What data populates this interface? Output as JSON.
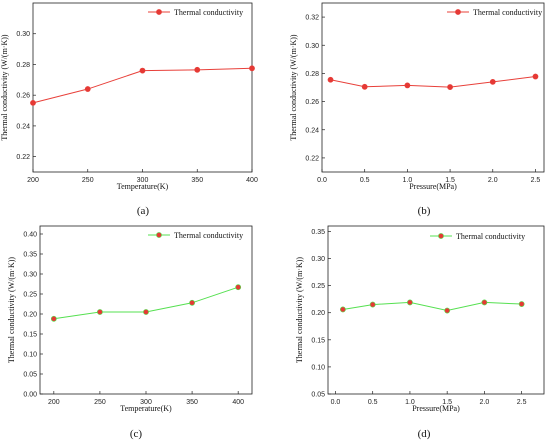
{
  "chart_data": [
    {
      "type": "line",
      "panel": "(a)",
      "xlabel": "Temperature(K)",
      "ylabel": "Thermal conductivity (W/(m·K))",
      "xlim": [
        200,
        400
      ],
      "ylim": [
        0.21,
        0.32
      ],
      "x_ticks": [
        "200",
        "250",
        "300",
        "350",
        "400"
      ],
      "y_ticks": [
        "0.22",
        "0.24",
        "0.26",
        "0.28",
        "0.30"
      ],
      "legend_position": "top-right",
      "line_color": "#e8403a",
      "series": [
        {
          "name": "Thermal conductivity",
          "x": [
            200,
            250,
            300,
            350,
            400
          ],
          "values": [
            0.255,
            0.264,
            0.276,
            0.2765,
            0.2775
          ]
        }
      ]
    },
    {
      "type": "line",
      "panel": "(b)",
      "xlabel": "Pressure(MPa)",
      "ylabel": "Thermal conductivity (W/(m·K))",
      "xlim": [
        0.0,
        2.6
      ],
      "ylim": [
        0.21,
        0.33
      ],
      "x_ticks": [
        "0.0",
        "0.5",
        "1.0",
        "1.5",
        "2.0",
        "2.5"
      ],
      "y_ticks": [
        "0.22",
        "0.24",
        "0.26",
        "0.28",
        "0.30",
        "0.32"
      ],
      "legend_position": "top-right",
      "line_color": "#e8403a",
      "series": [
        {
          "name": "Thermal conductivity",
          "x": [
            0.1,
            0.5,
            1.0,
            1.5,
            2.0,
            2.5
          ],
          "values": [
            0.2755,
            0.2705,
            0.2715,
            0.2703,
            0.274,
            0.2778
          ]
        }
      ]
    },
    {
      "type": "line",
      "panel": "(c)",
      "xlabel": "Temperature(K)",
      "ylabel": "Thermal conductivity (W/(m·K))",
      "xlim": [
        185,
        415
      ],
      "ylim": [
        0.0,
        0.42
      ],
      "x_ticks": [
        "200",
        "250",
        "300",
        "350",
        "400"
      ],
      "y_ticks": [
        "0.00",
        "0.05",
        "0.10",
        "0.15",
        "0.20",
        "0.25",
        "0.30",
        "0.35",
        "0.40"
      ],
      "legend_position": "top-right",
      "line_color": "#55e050",
      "series": [
        {
          "name": "Thermal conductivity",
          "x": [
            200,
            250,
            300,
            350,
            400
          ],
          "values": [
            0.188,
            0.205,
            0.205,
            0.228,
            0.267
          ]
        }
      ]
    },
    {
      "type": "line",
      "panel": "(d)",
      "xlabel": "Pressure(MPa)",
      "ylabel": "Thermal conductivity (W/(m·K))",
      "xlim": [
        -0.1,
        2.8
      ],
      "ylim": [
        0.05,
        0.36
      ],
      "x_ticks": [
        "0.0",
        "0.5",
        "1.0",
        "1.5",
        "2.0",
        "2.5"
      ],
      "y_ticks": [
        "0.05",
        "0.10",
        "0.15",
        "0.20",
        "0.25",
        "0.30",
        "0.35"
      ],
      "legend_position": "top-right",
      "line_color": "#55e050",
      "series": [
        {
          "name": "Thermal conductivity",
          "x": [
            0.1,
            0.5,
            1.0,
            1.5,
            2.0,
            2.5
          ],
          "values": [
            0.206,
            0.215,
            0.219,
            0.204,
            0.219,
            0.216
          ]
        }
      ]
    }
  ],
  "colors": {
    "marker_fill": "#e53935",
    "marker_highlight": "#ffffff",
    "axis": "#222222"
  }
}
